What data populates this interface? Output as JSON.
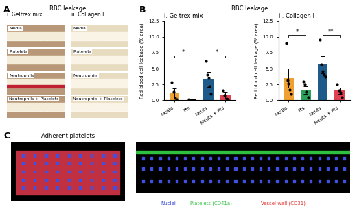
{
  "panel_labels": [
    "A",
    "B",
    "C"
  ],
  "panel_a": {
    "title": "RBC leakage",
    "columns": [
      {
        "label": "i. Geltrex mix",
        "rows": [
          "Media",
          "Platelets",
          "Neutrophils",
          "Neutrophils + Platelets"
        ]
      },
      {
        "label": "ii. Collagen I",
        "rows": [
          "Media",
          "Platelets",
          "Neutrophils",
          "Neutrophils + Platelets"
        ]
      }
    ]
  },
  "panel_b_title": "RBC leakage",
  "chart_data": [
    {
      "type": "bar",
      "title": "i. Geltrex mix",
      "categories": [
        "Media",
        "Pts",
        "Neuts",
        "Neuts + Pts"
      ],
      "values": [
        1.1,
        0.05,
        3.3,
        0.8
      ],
      "errors": [
        0.8,
        0.05,
        1.2,
        0.5
      ],
      "points": [
        [
          2.8,
          1.3,
          0.4,
          0.1
        ],
        [
          0.1,
          0.05,
          0.0,
          0.05
        ],
        [
          6.2,
          4.0,
          3.5,
          2.2,
          1.0
        ],
        [
          1.6,
          0.8,
          0.3,
          0.1
        ]
      ],
      "colors": [
        "#f0a030",
        "#2aa05a",
        "#1f5b8a",
        "#e04050"
      ],
      "y_label": "Red blood cell leakage (% area)",
      "ylim": [
        0,
        12.5
      ],
      "yticks": [
        {
          "value": 0,
          "label": "0.0"
        },
        {
          "value": 2.5,
          "label": "2.5"
        },
        {
          "value": 5,
          "label": "5.0"
        },
        {
          "value": 7.5,
          "label": "7.5"
        },
        {
          "value": 10,
          "label": "10.0"
        },
        {
          "value": 12.5,
          "label": "12.5"
        }
      ],
      "significance": [
        {
          "from": "Media",
          "to": "Pts",
          "label": "*"
        },
        {
          "from": "Neuts",
          "to": "Neuts + Pts",
          "label": "*"
        }
      ]
    },
    {
      "type": "bar",
      "title": "ii. Collagen I",
      "categories": [
        "Media",
        "Pts",
        "Neuts",
        "Neuts + Pts"
      ],
      "values": [
        3.5,
        1.6,
        5.6,
        1.5
      ],
      "errors": [
        1.5,
        0.6,
        1.3,
        0.5
      ],
      "points": [
        [
          9.0,
          3.2,
          2.6,
          1.7,
          1.0
        ],
        [
          3.0,
          2.5,
          1.3,
          0.5
        ],
        [
          9.5,
          5.6,
          4.6,
          4.0,
          3.7
        ],
        [
          2.5,
          1.5,
          1.2,
          0.5
        ]
      ],
      "colors": [
        "#f0a030",
        "#2aa05a",
        "#1f5b8a",
        "#e04050"
      ],
      "y_label": "Red blood cell leakage (% area)",
      "ylim": [
        0,
        12.5
      ],
      "yticks": [
        {
          "value": 0,
          "label": "0.0"
        },
        {
          "value": 2.5,
          "label": "2.5"
        },
        {
          "value": 5,
          "label": "5.0"
        },
        {
          "value": 7.5,
          "label": "7.5"
        },
        {
          "value": 10,
          "label": "10.0"
        },
        {
          "value": 12.5,
          "label": "12.5"
        }
      ],
      "significance": [
        {
          "from": "Media",
          "to": "Pts",
          "label": "*"
        },
        {
          "from": "Neuts",
          "to": "Neuts + Pts",
          "label": "**"
        }
      ]
    }
  ],
  "panel_c": {
    "title": "Adherent platelets",
    "legend": [
      {
        "label": "Nuclei",
        "color": "#3040d0"
      },
      {
        "label": "Platelets (CD41a)",
        "color": "#30c040"
      },
      {
        "label": "Vessel wall (CD31)",
        "color": "#e03030"
      }
    ]
  }
}
